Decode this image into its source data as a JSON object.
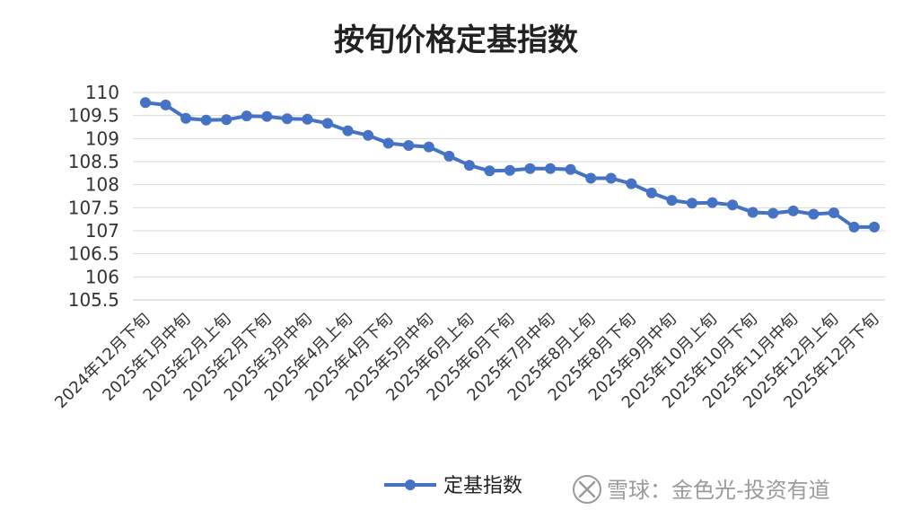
{
  "chart_data": {
    "type": "line",
    "title": "按旬价格定基指数",
    "xlabel": "",
    "ylabel": "",
    "ylim": [
      105.5,
      110
    ],
    "yticks": [
      "105.5",
      "106",
      "106.5",
      "107",
      "107.5",
      "108",
      "108.5",
      "109",
      "109.5",
      "110"
    ],
    "x_tick_labels": [
      "2024年12月下旬",
      "2025年1月中旬",
      "2025年2月上旬",
      "2025年2月下旬",
      "2025年3月中旬",
      "2025年4月上旬",
      "2025年4月下旬",
      "2025年5月中旬",
      "2025年6月上旬",
      "2025年6月下旬",
      "2025年7月中旬",
      "2025年8月上旬",
      "2025年8月下旬",
      "2025年9月中旬",
      "2025年10月上旬",
      "2025年10月下旬",
      "2025年11月中旬",
      "2025年12月上旬",
      "2025年12月下旬"
    ],
    "series": [
      {
        "name": "定基指数",
        "color": "#4472C4",
        "values": [
          109.78,
          109.73,
          109.44,
          109.4,
          109.41,
          109.49,
          109.48,
          109.43,
          109.42,
          109.33,
          109.17,
          109.07,
          108.9,
          108.85,
          108.82,
          108.62,
          108.42,
          108.3,
          108.31,
          108.35,
          108.35,
          108.33,
          108.14,
          108.14,
          108.02,
          107.82,
          107.66,
          107.6,
          107.61,
          107.56,
          107.4,
          107.38,
          107.43,
          107.36,
          107.39,
          107.08,
          107.08
        ]
      }
    ],
    "grid": true,
    "legend_position": "bottom"
  },
  "watermark": {
    "text": "雪球：金色光-投资有道"
  }
}
